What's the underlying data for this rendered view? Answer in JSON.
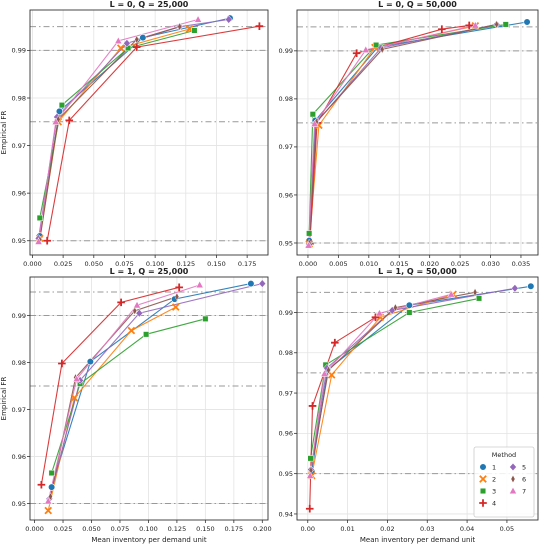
{
  "colors": {
    "1": "#1f77b4",
    "2": "#ff7f0e",
    "3": "#2ca02c",
    "4": "#d62728",
    "5": "#9467bd",
    "6": "#8c564b",
    "7": "#e377c2",
    "refline": "#999999",
    "grid": "#e3e3e3"
  },
  "markers": {
    "1": "circle",
    "2": "x",
    "3": "square",
    "4": "plus",
    "5": "diamond",
    "6": "thin-diamond",
    "7": "triangle"
  },
  "legend": {
    "title": "Method",
    "entries": [
      "1",
      "2",
      "3",
      "4",
      "5",
      "6",
      "7"
    ],
    "placement": "bottom-right of last panel"
  },
  "chart_data": [
    {
      "type": "line",
      "title": "L = 0, Q = 25,000",
      "xlabel": "",
      "ylabel": "Empirical FR",
      "xlim": [
        -0.002,
        0.192
      ],
      "ylim": [
        0.947,
        0.9985
      ],
      "xticks": [
        "0.000",
        "0.025",
        "0.050",
        "0.075",
        "0.100",
        "0.125",
        "0.150",
        "0.175"
      ],
      "xtick_values": [
        0,
        0.025,
        0.05,
        0.075,
        0.1,
        0.125,
        0.15,
        0.175
      ],
      "yticks": [
        "0.95",
        "0.96",
        "0.97",
        "0.98",
        "0.99"
      ],
      "ytick_values": [
        0.95,
        0.96,
        0.97,
        0.98,
        0.99
      ],
      "ref_lines": [
        0.95,
        0.975,
        0.99,
        0.995
      ],
      "grid": true,
      "series": [
        {
          "name": "1",
          "points": [
            [
              0.006,
              0.951
            ],
            [
              0.022,
              0.9772
            ],
            [
              0.09,
              0.9927
            ],
            [
              0.161,
              0.9968
            ]
          ]
        },
        {
          "name": "2",
          "points": [
            [
              0.006,
              0.9505
            ],
            [
              0.021,
              0.975
            ],
            [
              0.072,
              0.9905
            ],
            [
              0.128,
              0.9945
            ]
          ]
        },
        {
          "name": "3",
          "points": [
            [
              0.006,
              0.9548
            ],
            [
              0.024,
              0.9785
            ],
            [
              0.078,
              0.9905
            ],
            [
              0.132,
              0.9942
            ]
          ]
        },
        {
          "name": "4",
          "points": [
            [
              0.012,
              0.95
            ],
            [
              0.03,
              0.9753
            ],
            [
              0.085,
              0.9907
            ],
            [
              0.185,
              0.9951
            ]
          ]
        },
        {
          "name": "5",
          "points": [
            [
              0.005,
              0.9505
            ],
            [
              0.02,
              0.976
            ],
            [
              0.077,
              0.9915
            ],
            [
              0.12,
              0.995
            ],
            [
              0.16,
              0.9965
            ]
          ]
        },
        {
          "name": "6",
          "points": [
            [
              0.006,
              0.9502
            ],
            [
              0.021,
              0.9755
            ],
            [
              0.085,
              0.9923
            ],
            [
              0.12,
              0.995
            ]
          ]
        },
        {
          "name": "7",
          "points": [
            [
              0.005,
              0.9498
            ],
            [
              0.019,
              0.975
            ],
            [
              0.07,
              0.992
            ],
            [
              0.135,
              0.9965
            ]
          ]
        }
      ]
    },
    {
      "type": "line",
      "title": "L = 0, Q = 50,000",
      "xlabel": "",
      "ylabel": "",
      "xlim": [
        -0.0018,
        0.0378
      ],
      "ylim": [
        0.9475,
        0.9985
      ],
      "xticks": [
        "0.000",
        "0.005",
        "0.010",
        "0.015",
        "0.020",
        "0.025",
        "0.030",
        "0.035"
      ],
      "xtick_values": [
        0,
        0.005,
        0.01,
        0.015,
        0.02,
        0.025,
        0.03,
        0.035
      ],
      "yticks": [
        "0.95",
        "0.96",
        "0.97",
        "0.98",
        "0.99"
      ],
      "ytick_values": [
        0.95,
        0.96,
        0.97,
        0.98,
        0.99
      ],
      "ref_lines": [
        0.95,
        0.975,
        0.99,
        0.995
      ],
      "grid": true,
      "series": [
        {
          "name": "1",
          "points": [
            [
              0.0002,
              0.9505
            ],
            [
              0.0012,
              0.9755
            ],
            [
              0.0115,
              0.9908
            ],
            [
              0.036,
              0.996
            ]
          ]
        },
        {
          "name": "2",
          "points": [
            [
              0.0002,
              0.9498
            ],
            [
              0.0018,
              0.9745
            ],
            [
              0.011,
              0.9907
            ],
            [
              0.0275,
              0.9952
            ]
          ]
        },
        {
          "name": "3",
          "points": [
            [
              0.0002,
              0.952
            ],
            [
              0.0008,
              0.9768
            ],
            [
              0.0112,
              0.9912
            ],
            [
              0.0325,
              0.9955
            ]
          ]
        },
        {
          "name": "4",
          "points": [
            [
              0.0003,
              0.9498
            ],
            [
              0.0015,
              0.975
            ],
            [
              0.008,
              0.9895
            ],
            [
              0.022,
              0.9945
            ],
            [
              0.0265,
              0.9953
            ]
          ]
        },
        {
          "name": "5",
          "points": [
            [
              0.0002,
              0.9497
            ],
            [
              0.0013,
              0.975
            ],
            [
              0.012,
              0.9906
            ],
            [
              0.031,
              0.9955
            ]
          ]
        },
        {
          "name": "6",
          "points": [
            [
              0.0002,
              0.95
            ],
            [
              0.0014,
              0.9752
            ],
            [
              0.0122,
              0.9903
            ],
            [
              0.031,
              0.9955
            ]
          ]
        },
        {
          "name": "7",
          "points": [
            [
              0.0001,
              0.9495
            ],
            [
              0.0011,
              0.9748
            ],
            [
              0.0095,
              0.9902
            ],
            [
              0.0275,
              0.9953
            ]
          ]
        }
      ]
    },
    {
      "type": "line",
      "title": "L = 1, Q = 25,000",
      "xlabel": "Mean inventory per demand unit",
      "ylabel": "Empirical FR",
      "xlim": [
        -0.004,
        0.205
      ],
      "ylim": [
        0.9465,
        0.9982
      ],
      "xticks": [
        "0.000",
        "0.025",
        "0.050",
        "0.075",
        "0.100",
        "0.125",
        "0.150",
        "0.175",
        "0.200"
      ],
      "xtick_values": [
        0,
        0.025,
        0.05,
        0.075,
        0.1,
        0.125,
        0.15,
        0.175,
        0.2
      ],
      "yticks": [
        "0.95",
        "0.96",
        "0.97",
        "0.98",
        "0.99"
      ],
      "ytick_values": [
        0.95,
        0.96,
        0.97,
        0.98,
        0.99
      ],
      "ref_lines": [
        0.95,
        0.975,
        0.99,
        0.995
      ],
      "grid": true,
      "series": [
        {
          "name": "1",
          "points": [
            [
              0.015,
              0.9535
            ],
            [
              0.049,
              0.9802
            ],
            [
              0.123,
              0.9935
            ],
            [
              0.19,
              0.9968
            ]
          ]
        },
        {
          "name": "2",
          "points": [
            [
              0.012,
              0.9485
            ],
            [
              0.035,
              0.9725
            ],
            [
              0.085,
              0.9868
            ],
            [
              0.124,
              0.9918
            ]
          ]
        },
        {
          "name": "3",
          "points": [
            [
              0.015,
              0.9565
            ],
            [
              0.04,
              0.9755
            ],
            [
              0.098,
              0.986
            ],
            [
              0.15,
              0.9893
            ]
          ]
        },
        {
          "name": "4",
          "points": [
            [
              0.006,
              0.954
            ],
            [
              0.024,
              0.9798
            ],
            [
              0.076,
              0.9928
            ],
            [
              0.127,
              0.996
            ]
          ]
        },
        {
          "name": "5",
          "points": [
            [
              0.013,
              0.951
            ],
            [
              0.04,
              0.9762
            ],
            [
              0.092,
              0.9905
            ],
            [
              0.2,
              0.9968
            ]
          ]
        },
        {
          "name": "6",
          "points": [
            [
              0.014,
              0.9515
            ],
            [
              0.036,
              0.9768
            ],
            [
              0.088,
              0.991
            ],
            [
              0.125,
              0.994
            ]
          ]
        },
        {
          "name": "7",
          "points": [
            [
              0.012,
              0.9505
            ],
            [
              0.037,
              0.9765
            ],
            [
              0.09,
              0.9922
            ],
            [
              0.145,
              0.9965
            ]
          ]
        }
      ]
    },
    {
      "type": "line",
      "title": "L = 1, Q = 50,000",
      "xlabel": "Mean inventory per demand unit",
      "ylabel": "",
      "xlim": [
        -0.0027,
        0.0578
      ],
      "ylim": [
        0.9385,
        0.9988
      ],
      "xticks": [
        "0.00",
        "0.01",
        "0.02",
        "0.03",
        "0.04",
        "0.05"
      ],
      "xtick_values": [
        0,
        0.01,
        0.02,
        0.03,
        0.04,
        0.05
      ],
      "yticks": [
        "0.94",
        "0.95",
        "0.96",
        "0.97",
        "0.98",
        "0.99"
      ],
      "ytick_values": [
        0.94,
        0.95,
        0.96,
        0.97,
        0.98,
        0.99
      ],
      "ref_lines": [
        0.95,
        0.975,
        0.99,
        0.995
      ],
      "grid": true,
      "series": [
        {
          "name": "1",
          "points": [
            [
              0.001,
              0.9505
            ],
            [
              0.005,
              0.9758
            ],
            [
              0.0255,
              0.9918
            ],
            [
              0.056,
              0.9965
            ]
          ]
        },
        {
          "name": "2",
          "points": [
            [
              0.001,
              0.9495
            ],
            [
              0.006,
              0.9745
            ],
            [
              0.0182,
              0.9888
            ],
            [
              0.0365,
              0.9945
            ]
          ]
        },
        {
          "name": "3",
          "points": [
            [
              0.0007,
              0.9538
            ],
            [
              0.0045,
              0.977
            ],
            [
              0.0255,
              0.99
            ],
            [
              0.043,
              0.9935
            ]
          ]
        },
        {
          "name": "4",
          "points": [
            [
              0.0005,
              0.9413
            ],
            [
              0.0012,
              0.9668
            ],
            [
              0.0068,
              0.9825
            ],
            [
              0.017,
              0.9888
            ]
          ]
        },
        {
          "name": "5",
          "points": [
            [
              0.0008,
              0.951
            ],
            [
              0.0048,
              0.9762
            ],
            [
              0.0212,
              0.9905
            ],
            [
              0.052,
              0.996
            ]
          ]
        },
        {
          "name": "6",
          "points": [
            [
              0.0008,
              0.9508
            ],
            [
              0.0052,
              0.9757
            ],
            [
              0.022,
              0.9912
            ],
            [
              0.042,
              0.995
            ]
          ]
        },
        {
          "name": "7",
          "points": [
            [
              0.0006,
              0.9495
            ],
            [
              0.0042,
              0.9748
            ],
            [
              0.018,
              0.9898
            ],
            [
              0.036,
              0.9945
            ]
          ]
        }
      ]
    }
  ]
}
